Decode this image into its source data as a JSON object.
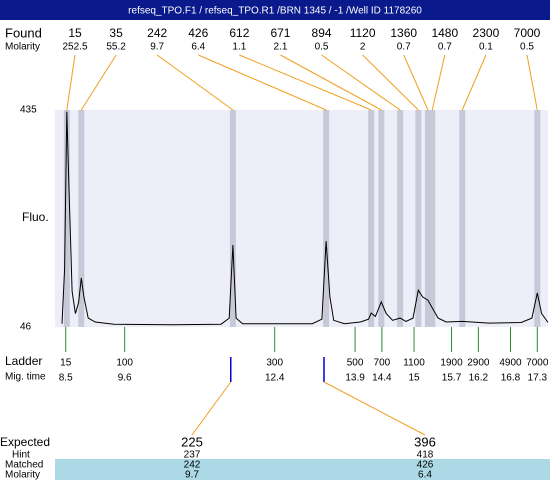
{
  "chart_data": {
    "type": "line",
    "title": "refseq_TPO.F1 / refseq_TPO.R1 /BRN 1345 / -1 /Well ID 1178260",
    "y_label": "Fluo.",
    "ylim": [
      46,
      435
    ],
    "yticks": [
      46,
      435
    ],
    "xlim": [
      8.3,
      17.5
    ],
    "found_label": "Found",
    "molarity_label": "Molarity",
    "found": [
      15,
      35,
      242,
      426,
      612,
      671,
      894,
      1120,
      1360,
      1480,
      2300,
      7000
    ],
    "found_molarity": [
      252.5,
      55.2,
      9.7,
      6.4,
      1.1,
      2.1,
      0.5,
      2,
      0.7,
      0.7,
      0.1,
      0.5
    ],
    "found_time": [
      8.52,
      8.79,
      11.62,
      13.36,
      14.2,
      14.39,
      14.74,
      15.08,
      15.26,
      15.34,
      15.9,
      17.3
    ],
    "ladder_label": "Ladder",
    "mig_time_label": "Mig. time",
    "ladder": [
      15,
      100,
      300,
      500,
      700,
      1100,
      1900,
      2900,
      4900,
      7000
    ],
    "mig_time": [
      8.5,
      9.6,
      12.4,
      13.9,
      14.4,
      15,
      15.7,
      16.2,
      16.8,
      17.3
    ],
    "expected_label": "Expected",
    "hint_label": "Hint",
    "matched_label": "Matched",
    "expected": [
      225,
      396
    ],
    "expected_time": [
      11.58,
      13.32
    ],
    "hint": [
      237,
      418
    ],
    "matched": [
      242,
      426
    ],
    "matched_molarity": [
      9.7,
      6.4
    ],
    "series": [
      {
        "color": "#000000",
        "x": [
          8.43,
          8.48,
          8.52,
          8.56,
          8.62,
          8.68,
          8.74,
          8.79,
          8.84,
          8.92,
          9.05,
          9.4,
          10.5,
          11.4,
          11.55,
          11.62,
          11.68,
          11.8,
          13.1,
          13.28,
          13.36,
          13.43,
          13.5,
          13.7,
          14.0,
          14.15,
          14.2,
          14.28,
          14.39,
          14.48,
          14.6,
          14.74,
          14.85,
          14.98,
          15.08,
          15.16,
          15.26,
          15.34,
          15.45,
          15.6,
          15.9,
          16.4,
          17.0,
          17.2,
          17.3,
          17.38,
          17.5
        ],
        "values": [
          52,
          150,
          432,
          300,
          110,
          70,
          90,
          134,
          100,
          62,
          55,
          51,
          50,
          51,
          62,
          193,
          62,
          52,
          52,
          60,
          200,
          100,
          58,
          52,
          55,
          60,
          71,
          65,
          91,
          70,
          58,
          62,
          56,
          62,
          112,
          100,
          94,
          80,
          62,
          55,
          56,
          53,
          54,
          62,
          107,
          70,
          54
        ]
      }
    ]
  }
}
